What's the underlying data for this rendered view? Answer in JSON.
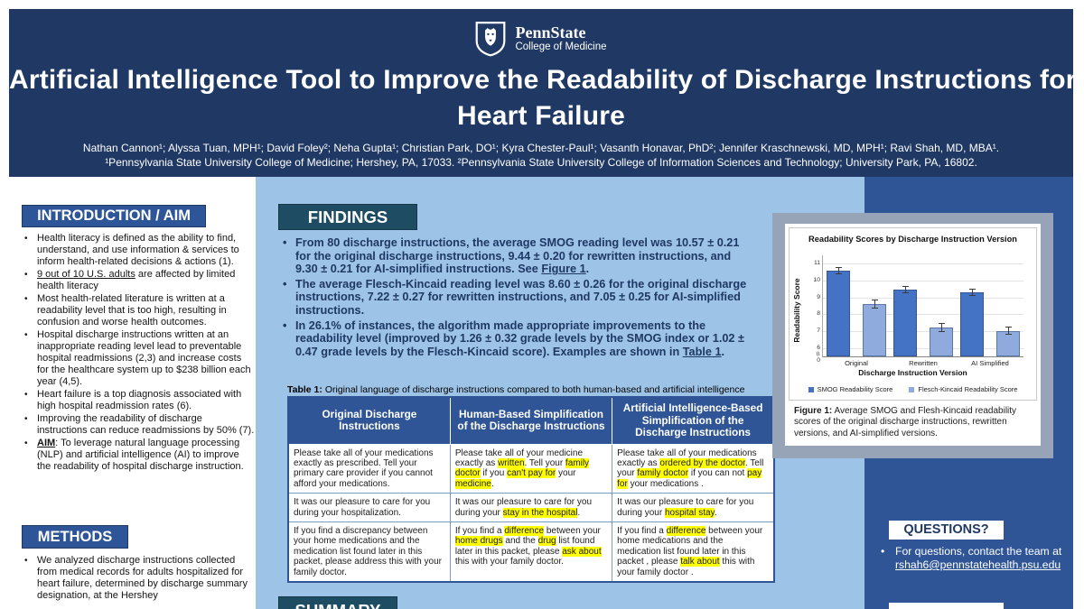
{
  "colors": {
    "header_navy": "#1F3864",
    "light_blue_panel": "#9DC3E6",
    "right_panel_blue": "#2F5597",
    "section_header_blue": "#2E5597",
    "findings_header_teal": "#1E4D63",
    "figure_frame_gray": "#97A3B7",
    "highlight_yellow": "#FFFF00",
    "smog_bar": "#4472C4",
    "flesch_kincaid_bar": "#8FAADC"
  },
  "header": {
    "logo_brand": "PennState",
    "logo_sub": "College of Medicine",
    "title_lines": [
      "Artificial Intelligence Tool to Improve the Readability of Discharge Instructions for",
      "Heart Failure"
    ],
    "authors": "Nathan Cannon¹; Alyssa Tuan, MPH¹; David Foley²; Neha Gupta¹; Christian Park, DO¹; Kyra Chester-Paul¹; Vasanth Honavar, PhD²; Jennifer Kraschnewski, MD, MPH¹; Ravi Shah, MD, MBA¹.",
    "affiliations": "¹Pennsylvania State University College of Medicine; Hershey, PA, 17033. ²Pennsylvania State University College of Information Sciences and Technology; University Park, PA, 16802."
  },
  "sections": {
    "intro": {
      "heading": "INTRODUCTION / AIM",
      "bullets": [
        "Health literacy is defined as the ability to find, understand, and use information & services to inform health-related decisions & actions (1).",
        [
          {
            "t": "9 out of 10 U.S. adults",
            "u": true
          },
          {
            "t": " are affected by limited health literacy"
          }
        ],
        "Most health-related literature is written at a readability level that is too high, resulting in confusion and worse health outcomes.",
        "Hospital discharge instructions written at an inappropriate reading level lead to preventable hospital readmissions (2,3) and increase costs for the healthcare system up to $238 billion each year (4,5).",
        "Heart failure is a top diagnosis associated with high hospital readmission rates (6).",
        "Improving the readability of discharge instructions can reduce readmissions by 50% (7).",
        [
          {
            "t": "AIM",
            "u": true,
            "b": true
          },
          {
            "t": ": To leverage natural language processing (NLP) and artificial intelligence (AI) to improve the readability of hospital discharge instruction."
          }
        ]
      ]
    },
    "methods": {
      "heading": "METHODS",
      "bullets": [
        "We analyzed discharge instructions collected from medical records for adults hospitalized for heart failure, determined by discharge summary designation, at the Hershey"
      ]
    },
    "findings": {
      "heading": "FINDINGS",
      "bullets": [
        [
          {
            "t": "From 80 discharge instructions, the average SMOG reading level was 10.57 ± 0.21 for the original discharge instructions, 9.44 ± 0.20 for rewritten instructions, and 9.30 ± 0.21 for AI-simplified instructions. See "
          },
          {
            "t": "Figure 1",
            "u": true
          },
          {
            "t": "."
          }
        ],
        "The average Flesch-Kincaid reading level was 8.60 ± 0.26 for the original discharge instructions, 7.22 ± 0.27 for rewritten instructions, and 7.05 ± 0.25 for AI-simplified instructions.",
        [
          {
            "t": "In 26.1% of instances, the algorithm made appropriate improvements to the readability level (improved by 1.26 ± 0.32 grade levels by the SMOG index or 1.02 ± 0.47 grade levels by the Flesch-Kincaid score). Examples are shown in "
          },
          {
            "t": "Table 1",
            "u": true
          },
          {
            "t": "."
          }
        ]
      ]
    },
    "summary": {
      "heading": "SUMMARY"
    },
    "questions": {
      "heading": "QUESTIONS?",
      "bullets": [
        [
          {
            "t": "For questions, contact the team at "
          },
          {
            "t": "rshah6@pennstatehealth.psu.edu",
            "u": true,
            "link": true
          }
        ]
      ]
    }
  },
  "table1": {
    "caption_label": "Table 1:",
    "caption": "Original language of discharge instructions compared to both human-based and artificial intelligence simplification.",
    "headers": [
      "Original Discharge Instructions",
      "Human-Based Simplification of the Discharge Instructions",
      "Artificial Intelligence-Based Simplification of the Discharge Instructions"
    ],
    "rows": [
      [
        "Please take all of your medications exactly as prescribed. Tell your primary care provider if you cannot afford your medications.",
        [
          {
            "t": "Please take all of your medicine exactly as "
          },
          {
            "t": "written",
            "hl": true
          },
          {
            "t": ". Tell your "
          },
          {
            "t": "family doctor",
            "hl": true
          },
          {
            "t": " if you "
          },
          {
            "t": "can't pay for",
            "hl": true
          },
          {
            "t": " your "
          },
          {
            "t": "medicine",
            "hl": true
          },
          {
            "t": "."
          }
        ],
        [
          {
            "t": "Please take all of your medications exactly as "
          },
          {
            "t": "ordered by the doctor",
            "hl": true
          },
          {
            "t": ". Tell your "
          },
          {
            "t": "family doctor",
            "hl": true
          },
          {
            "t": " if you can not "
          },
          {
            "t": "pay for",
            "hl": true
          },
          {
            "t": " your medications ."
          }
        ]
      ],
      [
        "It was our pleasure to care for you during your hospitalization.",
        [
          {
            "t": "It was our pleasure to care for you during your "
          },
          {
            "t": "stay in the hospital",
            "hl": true
          },
          {
            "t": "."
          }
        ],
        [
          {
            "t": "It was our pleasure to care for you during your "
          },
          {
            "t": "hospital stay",
            "hl": true
          },
          {
            "t": "."
          }
        ]
      ],
      [
        "If you find a discrepancy between your home medications and the medication list found later in this packet, please address this with your family doctor.",
        [
          {
            "t": "If you find a "
          },
          {
            "t": "difference",
            "hl": true
          },
          {
            "t": " between your "
          },
          {
            "t": "home drugs",
            "hl": true
          },
          {
            "t": " and the "
          },
          {
            "t": "drug",
            "hl": true
          },
          {
            "t": " list found later in this packet, please "
          },
          {
            "t": "ask about",
            "hl": true
          },
          {
            "t": " this with your family doctor."
          }
        ],
        [
          {
            "t": "If you find a "
          },
          {
            "t": "difference",
            "hl": true
          },
          {
            "t": " between your home medications and the medication list found later in this packet , please "
          },
          {
            "t": "talk about",
            "hl": true
          },
          {
            "t": " this with your family doctor ."
          }
        ]
      ]
    ]
  },
  "figure1": {
    "caption_label": "Figure 1:",
    "caption": "Average SMOG and Flesh-Kincaid readability scores of the original discharge instructions, rewritten versions, and AI-simplified versions."
  },
  "chart_data": {
    "type": "bar",
    "title": "Readability Scores by Discharge Instruction Version",
    "xlabel": "Discharge Instruction Version",
    "ylabel": "Readability Score",
    "categories": [
      "Original",
      "Rewritten",
      "AI Simplified"
    ],
    "series": [
      {
        "name": "SMOG Readability Score",
        "color": "#4472C4",
        "values": [
          10.57,
          9.44,
          9.3
        ],
        "errors": [
          0.21,
          0.2,
          0.21
        ]
      },
      {
        "name": "Flesch-Kincaid Readability Score",
        "color": "#8FAADC",
        "values": [
          8.6,
          7.22,
          7.05
        ],
        "errors": [
          0.26,
          0.27,
          0.25
        ]
      }
    ],
    "yticks": [
      6,
      7,
      8,
      9,
      10,
      11
    ],
    "y_break_label": "0",
    "ylim": [
      5.55,
      11.45
    ],
    "grid": true,
    "legend_position": "bottom"
  }
}
